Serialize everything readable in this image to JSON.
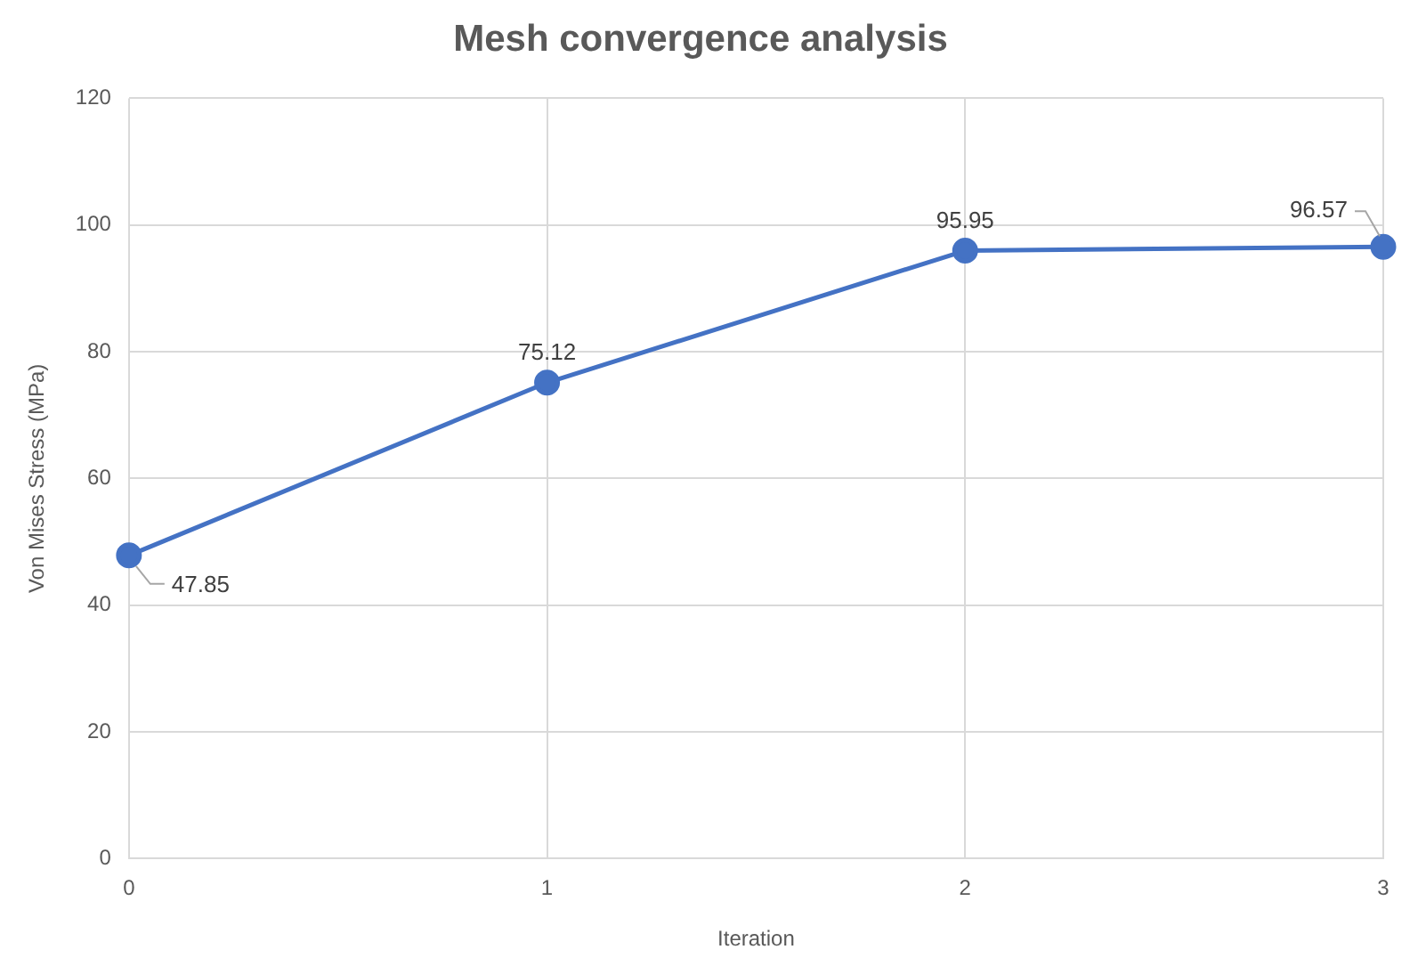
{
  "chart_data": {
    "type": "line",
    "title": "Mesh convergence analysis",
    "xlabel": "Iteration",
    "ylabel": "Von Mises Stress (MPa)",
    "categories": [
      "0",
      "1",
      "2",
      "3"
    ],
    "series": [
      {
        "color": "#4472c4",
        "values": [
          47.85,
          75.12,
          95.95,
          96.57
        ]
      }
    ],
    "ylim": [
      0,
      120
    ],
    "yticks": [
      0,
      20,
      40,
      60,
      80,
      100,
      120
    ],
    "grid": true,
    "legend": false,
    "marker": "circle",
    "data_labels": true
  }
}
